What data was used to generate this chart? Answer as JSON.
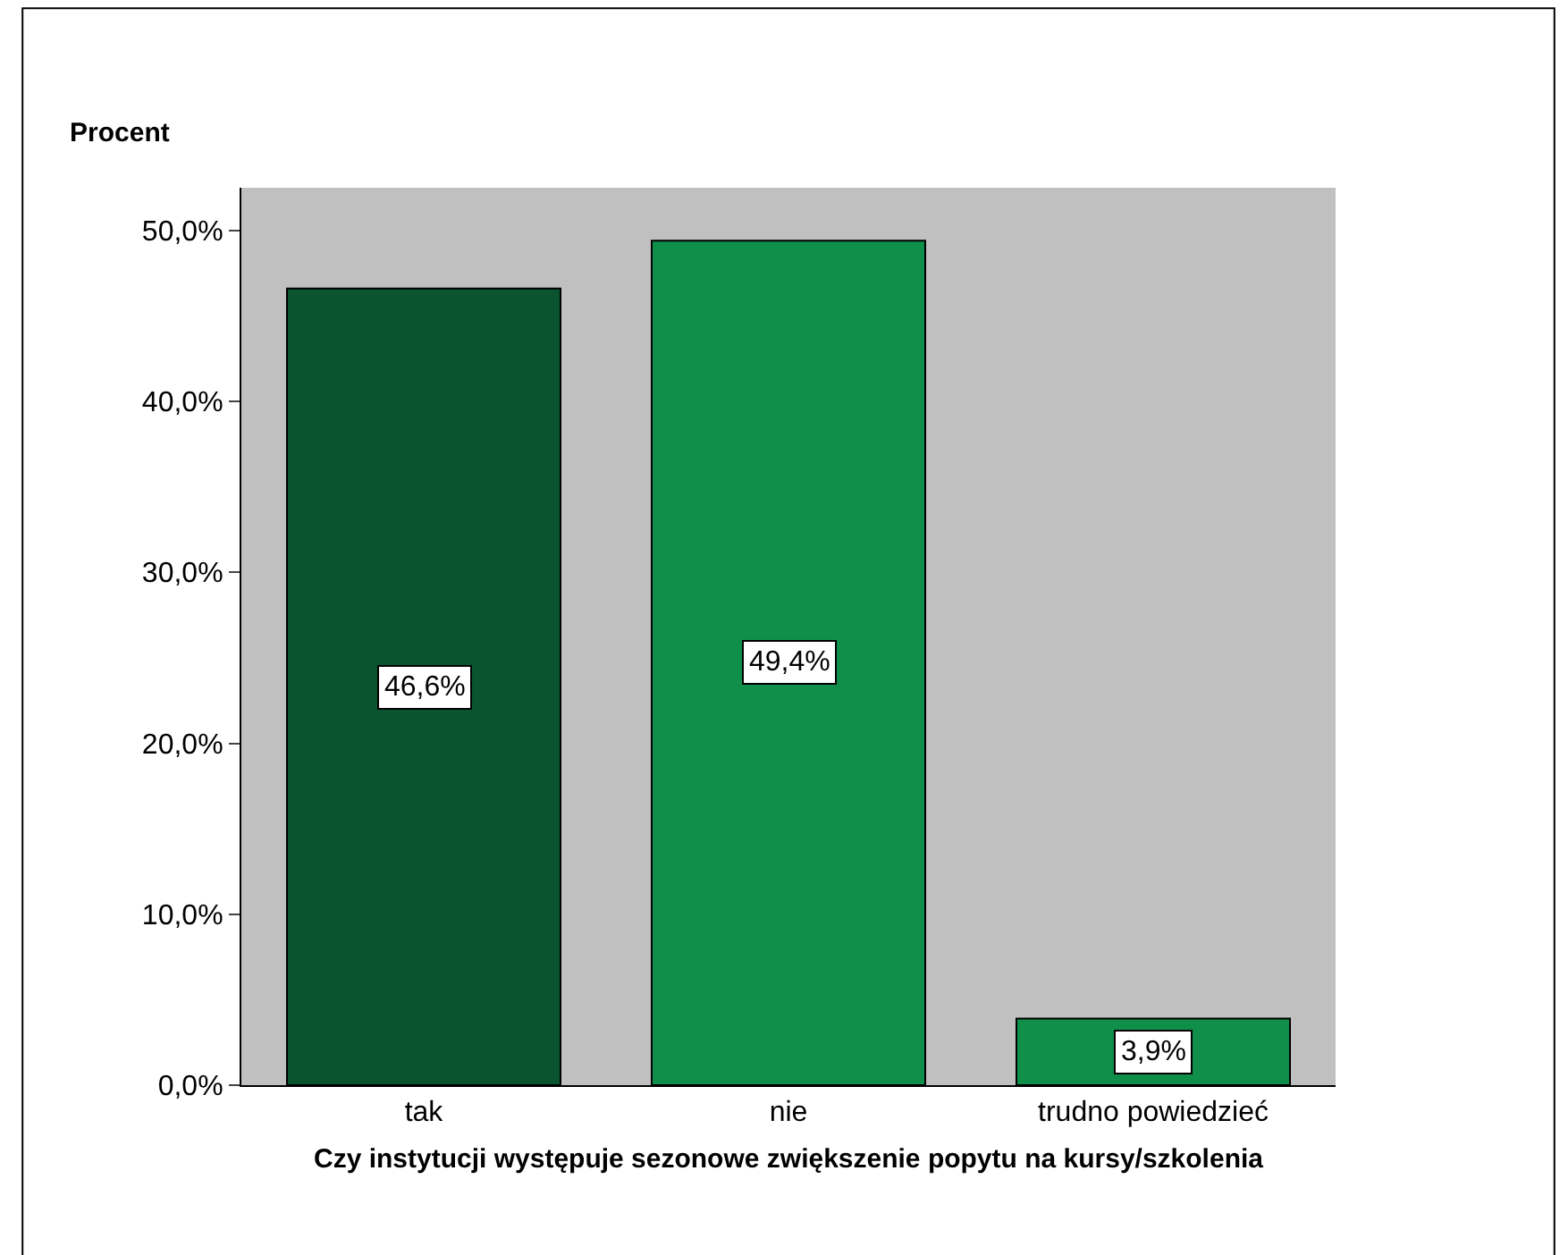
{
  "chart_data": {
    "type": "bar",
    "xlabel": "Czy instytucji występuje sezonowe zwiększenie popytu na kursy/szkolenia",
    "ylabel": "Procent",
    "categories": [
      "tak",
      "nie",
      "trudno powiedzieć"
    ],
    "values": [
      46.6,
      49.4,
      3.9
    ],
    "colors": [
      "#0a5530",
      "#0f8f4a",
      "#0f8f4a"
    ],
    "value_labels": [
      "46,6%",
      "49,4%",
      "3,9%"
    ],
    "ylim": [
      0,
      52.5
    ],
    "yticks": [
      {
        "value": 0,
        "label": "0,0%"
      },
      {
        "value": 10,
        "label": "10,0%"
      },
      {
        "value": 20,
        "label": "20,0%"
      },
      {
        "value": 30,
        "label": "30,0%"
      },
      {
        "value": 40,
        "label": "40,0%"
      },
      {
        "value": 50,
        "label": "50,0%"
      }
    ],
    "grid": false,
    "legend": false
  }
}
